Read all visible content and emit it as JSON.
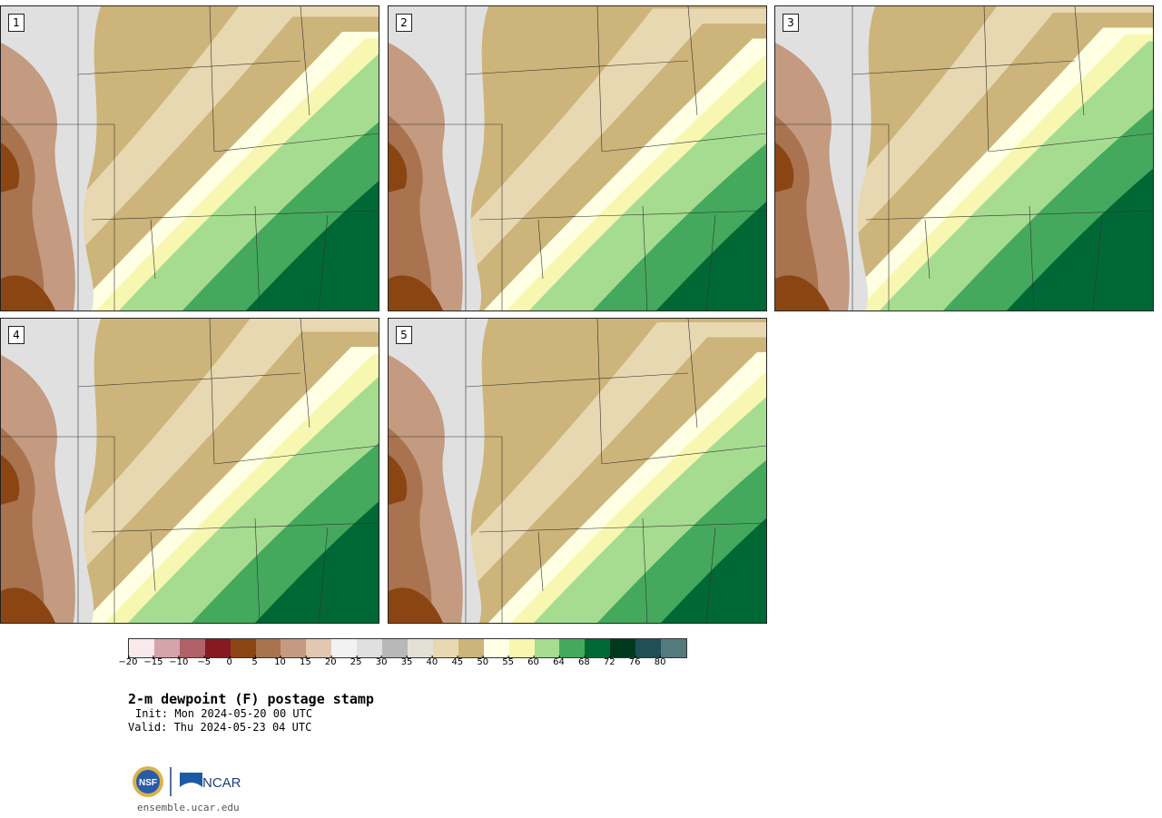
{
  "panels": [
    {
      "label": "1"
    },
    {
      "label": "2"
    },
    {
      "label": "3"
    },
    {
      "label": "4"
    },
    {
      "label": "5"
    }
  ],
  "colorbar": {
    "colors": [
      "#f7e9ec",
      "#d7a3aa",
      "#b06268",
      "#861a22",
      "#8b4513",
      "#a8734e",
      "#c49a80",
      "#e2c7b2",
      "#f2f2f2",
      "#e0e0e0",
      "#b8b8b8",
      "#e3e1d6",
      "#e8d8b1",
      "#cdb47a",
      "#ffffe3",
      "#f7f7b2",
      "#a6dc90",
      "#44a95c",
      "#006834",
      "#003a1e",
      "#1f5055",
      "#557a7e"
    ],
    "tick_labels": [
      "−20",
      "−15",
      "−10",
      "−5",
      "0",
      "5",
      "10",
      "15",
      "20",
      "25",
      "30",
      "35",
      "40",
      "45",
      "50",
      "55",
      "60",
      "64",
      "68",
      "72",
      "76",
      "80"
    ]
  },
  "title": "2-m dewpoint (F) postage stamp",
  "init": "Init: Mon 2024-05-20 00 UTC",
  "valid": "Valid: Thu 2024-05-23 04 UTC",
  "logos": {
    "nsf": "NSF",
    "ncar": "NCAR"
  },
  "site": "ensemble.ucar.edu"
}
